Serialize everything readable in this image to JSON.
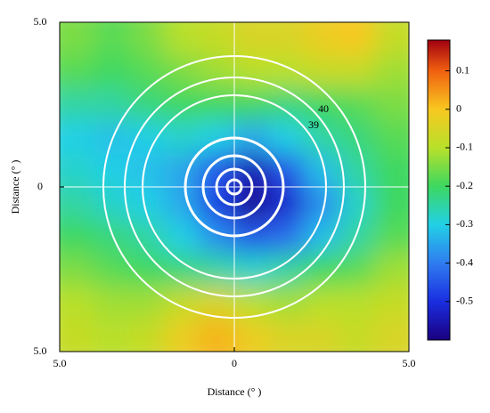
{
  "chart_data": {
    "type": "heatmap",
    "xlabel": "Distance (° )",
    "ylabel": "Distance (° )",
    "annotations": [
      "40",
      "39"
    ],
    "x": [
      -4.5,
      -3.5,
      -2.5,
      -1.5,
      -0.5,
      0.5,
      1.5,
      2.5,
      3.5,
      4.5
    ],
    "y": [
      4.5,
      3.5,
      2.5,
      1.5,
      0.5,
      -0.5,
      -1.5,
      -2.5,
      -3.5,
      -4.5
    ],
    "z": [
      [
        -0.15,
        -0.18,
        -0.15,
        -0.1,
        -0.08,
        -0.05,
        -0.05,
        -0.02,
        0.0,
        -0.08
      ],
      [
        -0.18,
        -0.2,
        -0.18,
        -0.15,
        -0.12,
        -0.1,
        -0.1,
        -0.08,
        -0.08,
        -0.12
      ],
      [
        -0.25,
        -0.25,
        -0.22,
        -0.2,
        -0.2,
        -0.2,
        -0.22,
        -0.2,
        -0.18,
        -0.15
      ],
      [
        -0.3,
        -0.32,
        -0.3,
        -0.28,
        -0.3,
        -0.35,
        -0.3,
        -0.25,
        -0.22,
        -0.18
      ],
      [
        -0.28,
        -0.3,
        -0.32,
        -0.35,
        -0.45,
        -0.55,
        -0.45,
        -0.32,
        -0.25,
        -0.2
      ],
      [
        -0.25,
        -0.28,
        -0.3,
        -0.35,
        -0.48,
        -0.58,
        -0.52,
        -0.38,
        -0.28,
        -0.2
      ],
      [
        -0.2,
        -0.22,
        -0.25,
        -0.3,
        -0.38,
        -0.45,
        -0.42,
        -0.32,
        -0.25,
        -0.18
      ],
      [
        -0.15,
        -0.18,
        -0.2,
        -0.22,
        -0.25,
        -0.28,
        -0.25,
        -0.2,
        -0.18,
        -0.12
      ],
      [
        -0.1,
        -0.12,
        -0.12,
        -0.08,
        -0.05,
        -0.1,
        -0.12,
        -0.1,
        -0.1,
        -0.08
      ],
      [
        -0.08,
        -0.1,
        -0.08,
        -0.02,
        0.02,
        -0.02,
        -0.05,
        -0.05,
        -0.08,
        -0.05
      ]
    ],
    "xlim": [
      -5,
      5
    ],
    "ylim": [
      -5,
      5
    ],
    "xticks": [
      {
        "value": -5,
        "label": "5.0"
      },
      0,
      {
        "value": 5,
        "label": "5.0"
      }
    ],
    "yticks": [
      {
        "value": 5,
        "label": "5.0"
      },
      0,
      {
        "value": -5,
        "label": "5.0"
      }
    ],
    "colorbar_lim": [
      -0.6,
      0.18
    ],
    "colorbar_ticks": [
      0.1,
      0,
      -0.1,
      -0.2,
      -0.3,
      -0.4,
      -0.5
    ],
    "colorscale": [
      [
        -0.6,
        "#1a0080"
      ],
      [
        -0.5,
        "#1a2ee0"
      ],
      [
        -0.4,
        "#2f7cf0"
      ],
      [
        -0.3,
        "#22d0e6"
      ],
      [
        -0.2,
        "#3dd860"
      ],
      [
        -0.1,
        "#b8e02a"
      ],
      [
        0.0,
        "#f8c820"
      ],
      [
        0.1,
        "#f06010"
      ],
      [
        0.18,
        "#a00010"
      ]
    ]
  }
}
